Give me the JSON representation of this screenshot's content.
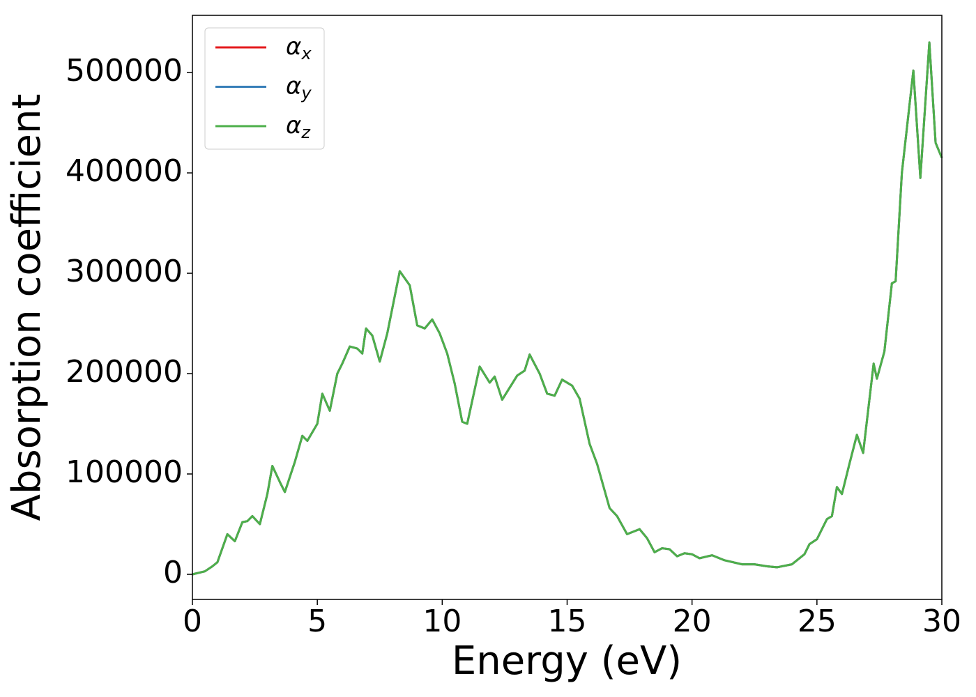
{
  "chart_data": {
    "type": "line",
    "xlabel": "Energy (eV)",
    "ylabel": "Absorption coefficient",
    "x": [
      0,
      0.5,
      0.8,
      1.0,
      1.4,
      1.7,
      2.0,
      2.2,
      2.4,
      2.7,
      3.0,
      3.2,
      3.5,
      3.7,
      4.1,
      4.4,
      4.6,
      5.0,
      5.2,
      5.5,
      5.8,
      6.0,
      6.3,
      6.6,
      6.8,
      6.95,
      7.2,
      7.5,
      7.8,
      8.3,
      8.7,
      9.0,
      9.3,
      9.6,
      9.9,
      10.2,
      10.5,
      10.8,
      11.0,
      11.5,
      11.9,
      12.1,
      12.4,
      13.0,
      13.3,
      13.5,
      13.9,
      14.2,
      14.5,
      14.8,
      15.2,
      15.5,
      15.9,
      16.2,
      16.7,
      17.0,
      17.4,
      17.9,
      18.2,
      18.5,
      18.8,
      19.1,
      19.4,
      19.7,
      20.0,
      20.3,
      20.8,
      21.3,
      22.0,
      22.5,
      23.0,
      23.4,
      24.0,
      24.5,
      24.7,
      25.0,
      25.4,
      25.6,
      25.8,
      26.0,
      26.3,
      26.6,
      26.85,
      27.27,
      27.4,
      27.7,
      28.0,
      28.15,
      28.4,
      28.86,
      29.14,
      29.5,
      29.75,
      30
    ],
    "series": [
      {
        "name": "αx",
        "color": "#e41a1c",
        "values": [
          0,
          3000,
          8000,
          12000,
          40000,
          33000,
          52000,
          53000,
          58000,
          50000,
          80000,
          108000,
          92000,
          82000,
          112000,
          138000,
          133000,
          150000,
          180000,
          163000,
          200000,
          210000,
          227000,
          225000,
          220000,
          245000,
          238000,
          212000,
          240000,
          302000,
          288000,
          248000,
          245000,
          254000,
          240000,
          220000,
          190000,
          152000,
          150000,
          207000,
          191000,
          197000,
          174000,
          198000,
          203000,
          219000,
          200000,
          180000,
          178000,
          194000,
          188000,
          175000,
          130000,
          110000,
          66000,
          58000,
          40000,
          45000,
          36000,
          22000,
          26000,
          25000,
          18000,
          21000,
          20000,
          16000,
          19000,
          14000,
          10000,
          10000,
          8000,
          7000,
          10000,
          20000,
          30000,
          35000,
          55000,
          58000,
          87000,
          80000,
          110000,
          139000,
          121000,
          210000,
          195000,
          222000,
          290000,
          292000,
          400000,
          502000,
          395000,
          530000,
          430000,
          415000
        ]
      },
      {
        "name": "αy",
        "color": "#377eb8",
        "values": [
          0,
          3000,
          8000,
          12000,
          40000,
          33000,
          52000,
          53000,
          58000,
          50000,
          80000,
          108000,
          92000,
          82000,
          112000,
          138000,
          133000,
          150000,
          180000,
          163000,
          200000,
          210000,
          227000,
          225000,
          220000,
          245000,
          238000,
          212000,
          240000,
          302000,
          288000,
          248000,
          245000,
          254000,
          240000,
          220000,
          190000,
          152000,
          150000,
          207000,
          191000,
          197000,
          174000,
          198000,
          203000,
          219000,
          200000,
          180000,
          178000,
          194000,
          188000,
          175000,
          130000,
          110000,
          66000,
          58000,
          40000,
          45000,
          36000,
          22000,
          26000,
          25000,
          18000,
          21000,
          20000,
          16000,
          19000,
          14000,
          10000,
          10000,
          8000,
          7000,
          10000,
          20000,
          30000,
          35000,
          55000,
          58000,
          87000,
          80000,
          110000,
          139000,
          121000,
          210000,
          195000,
          222000,
          290000,
          292000,
          400000,
          502000,
          395000,
          530000,
          430000,
          415000
        ]
      },
      {
        "name": "αz",
        "color": "#4daf4a",
        "values": [
          0,
          3000,
          8000,
          12000,
          40000,
          33000,
          52000,
          53000,
          58000,
          50000,
          80000,
          108000,
          92000,
          82000,
          112000,
          138000,
          133000,
          150000,
          180000,
          163000,
          200000,
          210000,
          227000,
          225000,
          220000,
          245000,
          238000,
          212000,
          240000,
          302000,
          288000,
          248000,
          245000,
          254000,
          240000,
          220000,
          190000,
          152000,
          150000,
          207000,
          191000,
          197000,
          174000,
          198000,
          203000,
          219000,
          200000,
          180000,
          178000,
          194000,
          188000,
          175000,
          130000,
          110000,
          66000,
          58000,
          40000,
          45000,
          36000,
          22000,
          26000,
          25000,
          18000,
          21000,
          20000,
          16000,
          19000,
          14000,
          10000,
          10000,
          8000,
          7000,
          10000,
          20000,
          30000,
          35000,
          55000,
          58000,
          87000,
          80000,
          110000,
          139000,
          121000,
          210000,
          195000,
          222000,
          290000,
          292000,
          400000,
          502000,
          395000,
          530000,
          430000,
          415000
        ]
      }
    ],
    "xlim": [
      0,
      30
    ],
    "xticks": [
      0,
      5,
      10,
      15,
      20,
      25,
      30
    ],
    "ylim": [
      -25000,
      557000
    ],
    "yticks": [
      0,
      100000,
      200000,
      300000,
      400000,
      500000
    ],
    "legend": "upper-left"
  }
}
